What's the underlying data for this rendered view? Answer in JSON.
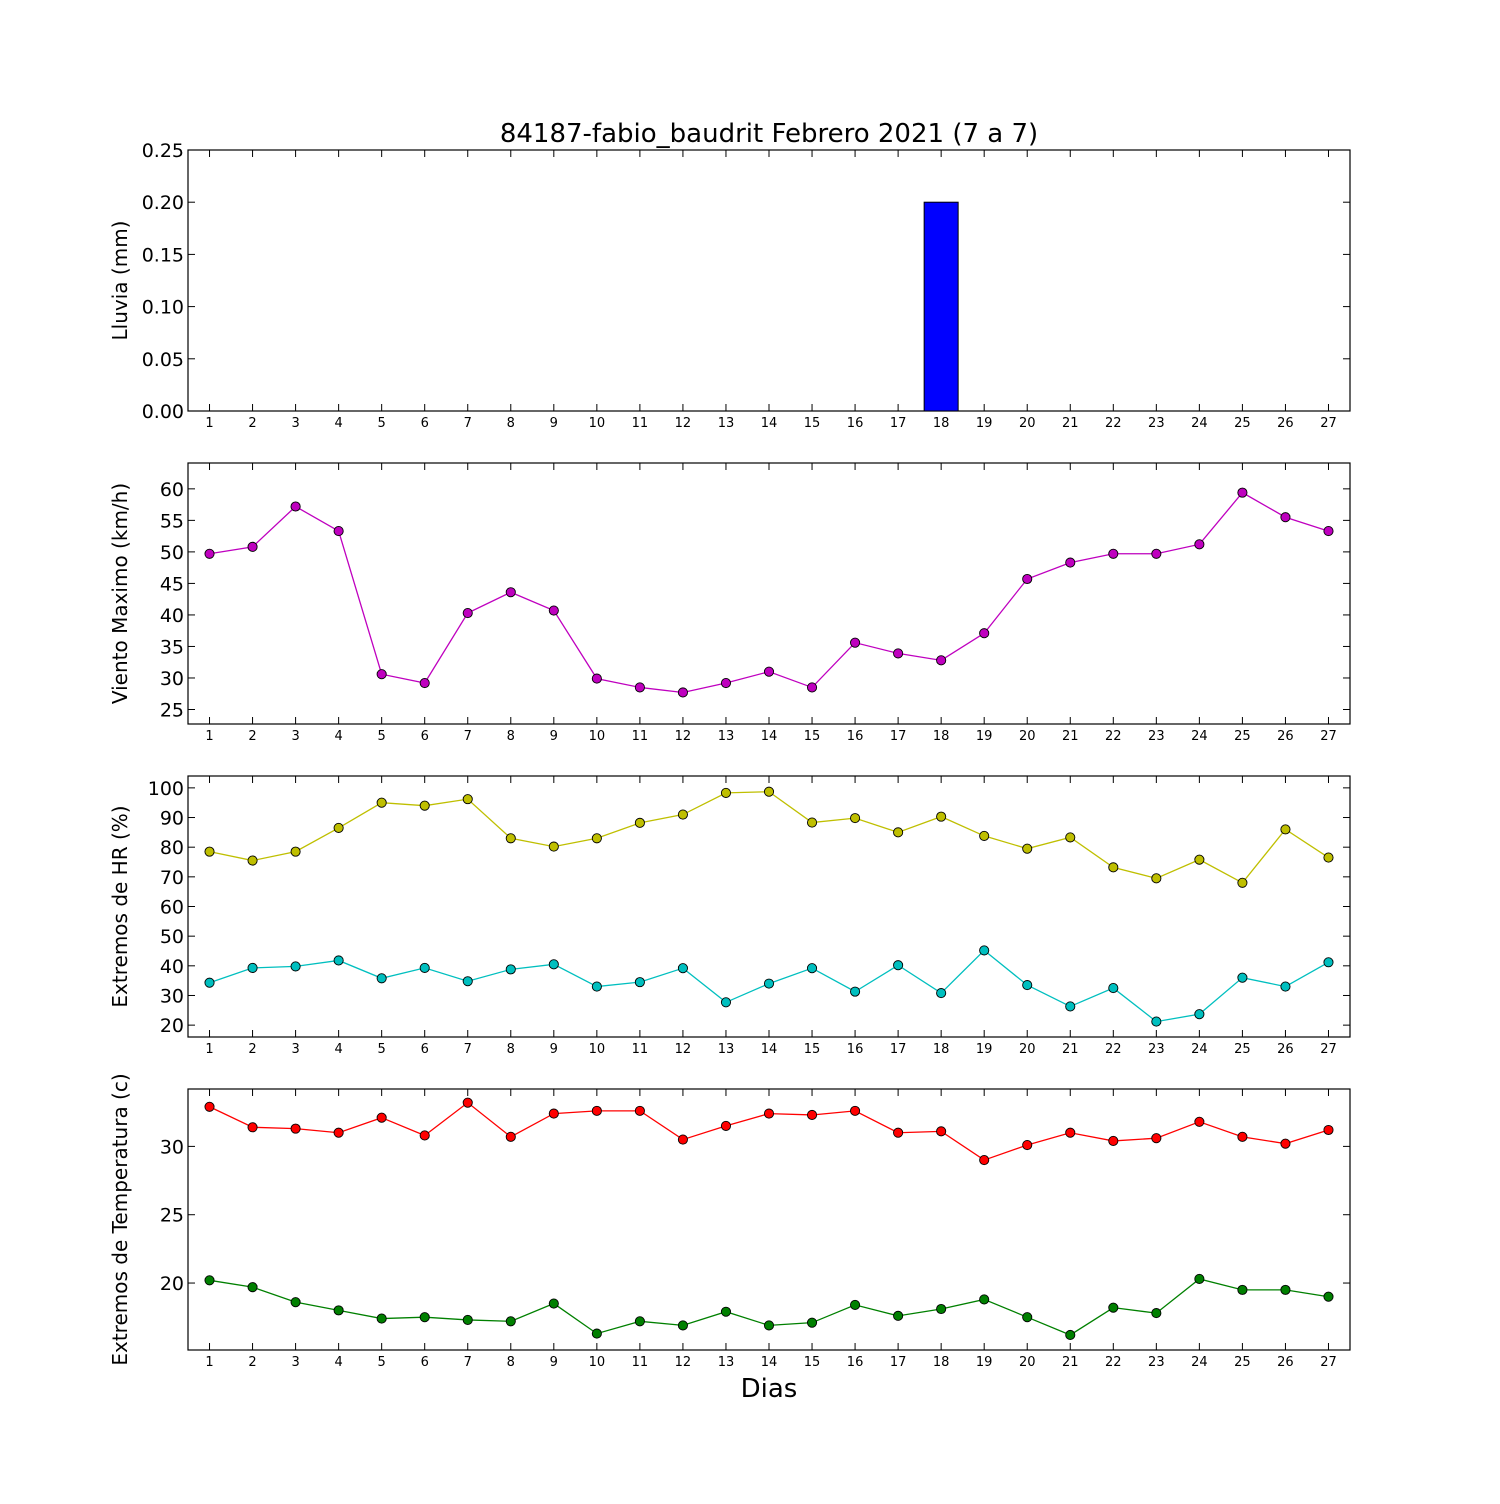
{
  "title": "84187-fabio_baudrit Febrero 2021  (7 a 7)",
  "xlabel": "Dias",
  "colors": {
    "rain": "#0000ff",
    "wind": "#bf00bf",
    "hr_max": "#bfbf00",
    "hr_min": "#00bfbf",
    "temp_max": "#ff0000",
    "temp_min": "#008000"
  },
  "chart_data": [
    {
      "type": "bar",
      "ylabel": "Lluvia (mm)",
      "ylim": [
        0,
        0.25
      ],
      "yticks": [
        0,
        0.05,
        0.1,
        0.15,
        0.2,
        0.25
      ],
      "ytick_labels": [
        "0.00",
        "0.05",
        "0.10",
        "0.15",
        "0.20",
        "0.25"
      ],
      "x": [
        1,
        2,
        3,
        4,
        5,
        6,
        7,
        8,
        9,
        10,
        11,
        12,
        13,
        14,
        15,
        16,
        17,
        18,
        19,
        20,
        21,
        22,
        23,
        24,
        25,
        26,
        27
      ],
      "series": [
        {
          "color": "#0000ff",
          "values": [
            0,
            0,
            0,
            0,
            0,
            0,
            0,
            0,
            0,
            0,
            0,
            0,
            0,
            0,
            0,
            0,
            0,
            0.2,
            0,
            0,
            0,
            0,
            0,
            0,
            0,
            0,
            0
          ]
        }
      ]
    },
    {
      "type": "line",
      "ylabel": "Viento Maximo (km/h)",
      "ylim": [
        22.7,
        64.1
      ],
      "yticks": [
        25,
        30,
        35,
        40,
        45,
        50,
        55,
        60
      ],
      "ytick_labels": [
        "25",
        "30",
        "35",
        "40",
        "45",
        "50",
        "55",
        "60"
      ],
      "x": [
        1,
        2,
        3,
        4,
        5,
        6,
        7,
        8,
        9,
        10,
        11,
        12,
        13,
        14,
        15,
        16,
        17,
        18,
        19,
        20,
        21,
        22,
        23,
        24,
        25,
        26,
        27
      ],
      "series": [
        {
          "color": "#bf00bf",
          "values": [
            49.7,
            50.8,
            57.2,
            53.3,
            30.6,
            29.2,
            40.3,
            43.6,
            40.7,
            29.9,
            28.5,
            27.7,
            29.2,
            31.0,
            28.5,
            35.6,
            33.9,
            32.8,
            37.1,
            45.7,
            48.3,
            49.7,
            49.7,
            51.2,
            59.4,
            55.5,
            53.3
          ]
        }
      ]
    },
    {
      "type": "line",
      "ylabel": "Extremos de HR (%)",
      "ylim": [
        16,
        104
      ],
      "yticks": [
        20,
        30,
        40,
        50,
        60,
        70,
        80,
        90,
        100
      ],
      "ytick_labels": [
        "20",
        "30",
        "40",
        "50",
        "60",
        "70",
        "80",
        "90",
        "100"
      ],
      "x": [
        1,
        2,
        3,
        4,
        5,
        6,
        7,
        8,
        9,
        10,
        11,
        12,
        13,
        14,
        15,
        16,
        17,
        18,
        19,
        20,
        21,
        22,
        23,
        24,
        25,
        26,
        27
      ],
      "series": [
        {
          "color": "#bfbf00",
          "values": [
            78.5,
            75.5,
            78.5,
            86.5,
            95,
            94,
            96.2,
            83,
            80.2,
            83,
            88.2,
            91,
            98.3,
            98.7,
            88.3,
            89.8,
            85,
            90.3,
            83.8,
            79.5,
            83.3,
            73.2,
            69.5,
            75.8,
            68,
            86,
            76.5
          ]
        },
        {
          "color": "#00bfbf",
          "values": [
            34.3,
            39.3,
            39.8,
            41.8,
            35.8,
            39.3,
            34.8,
            38.8,
            40.5,
            33,
            34.5,
            39.2,
            27.7,
            34,
            39.2,
            31.3,
            40.2,
            30.8,
            45.2,
            33.5,
            26.3,
            32.5,
            21.2,
            23.7,
            36,
            33,
            41.2
          ]
        }
      ]
    },
    {
      "type": "line",
      "ylabel": "Extremos de Temperatura (c)",
      "ylim": [
        15.1,
        34.2
      ],
      "yticks": [
        20,
        25,
        30
      ],
      "ytick_labels": [
        "20",
        "25",
        "30"
      ],
      "x": [
        1,
        2,
        3,
        4,
        5,
        6,
        7,
        8,
        9,
        10,
        11,
        12,
        13,
        14,
        15,
        16,
        17,
        18,
        19,
        20,
        21,
        22,
        23,
        24,
        25,
        26,
        27
      ],
      "series": [
        {
          "color": "#ff0000",
          "values": [
            32.9,
            31.4,
            31.3,
            31.0,
            32.1,
            30.8,
            33.2,
            30.7,
            32.4,
            32.6,
            32.6,
            30.5,
            31.5,
            32.4,
            32.3,
            32.6,
            31.0,
            31.1,
            29.0,
            30.1,
            31.0,
            30.4,
            30.6,
            31.8,
            30.7,
            30.2,
            31.2
          ]
        },
        {
          "color": "#008000",
          "values": [
            20.2,
            19.7,
            18.6,
            18.0,
            17.4,
            17.5,
            17.3,
            17.2,
            18.5,
            16.3,
            17.2,
            16.9,
            17.9,
            16.9,
            17.1,
            18.4,
            17.6,
            18.1,
            18.8,
            17.5,
            16.2,
            18.2,
            17.8,
            20.3,
            19.5,
            19.5,
            19.0
          ]
        }
      ]
    }
  ]
}
